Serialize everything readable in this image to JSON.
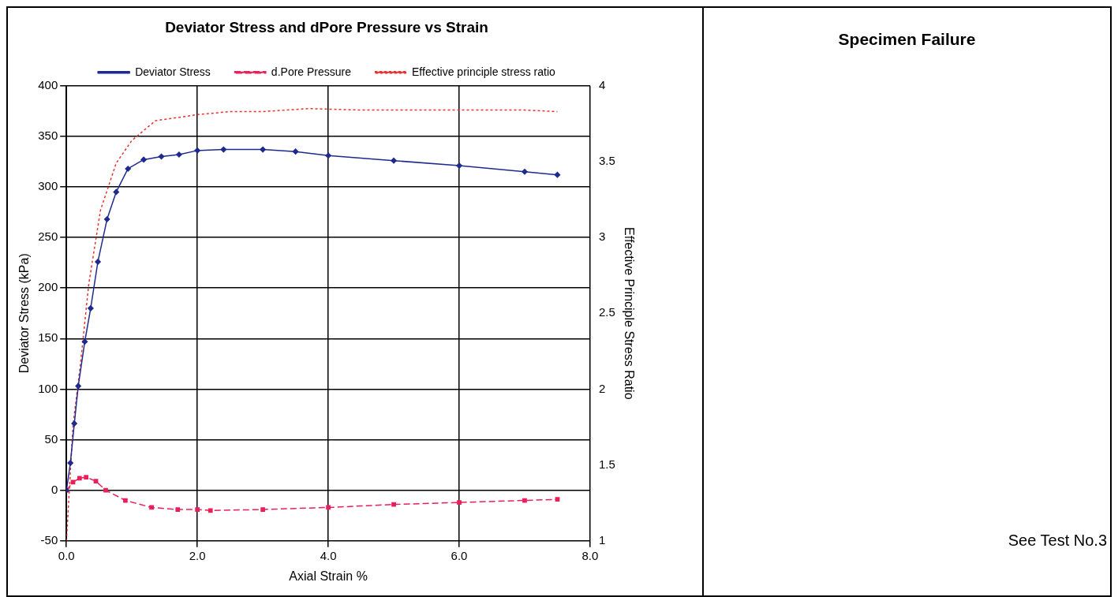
{
  "chart_data": [
    {
      "type": "line",
      "title": "Deviator Stress and dPore Pressure vs Strain",
      "xlabel": "Axial Strain %",
      "ylabel": "Deviator Stress (kPa)",
      "y2label": "Effective Principle Stress Ratio",
      "series": [
        {
          "name": "Deviator Stress",
          "color": "#1f2a8f",
          "marker": "diamond",
          "line_style": "solid",
          "x": [
            0,
            0.06,
            0.12,
            0.18,
            0.28,
            0.37,
            0.48,
            0.62,
            0.76,
            0.94,
            1.18,
            1.45,
            1.72,
            2.0,
            2.4,
            3.0,
            3.5,
            4.0,
            5.0,
            6.0,
            7.0,
            7.5
          ],
          "values": [
            0,
            27,
            66,
            103,
            147,
            180,
            226,
            268,
            295,
            318,
            327,
            330,
            332,
            336,
            337,
            337,
            335,
            331,
            326,
            321,
            315,
            312
          ]
        },
        {
          "name": "d.Pore Pressure",
          "color": "#e8205a",
          "marker": "square",
          "line_style": "dashed",
          "x": [
            0,
            0.1,
            0.2,
            0.3,
            0.45,
            0.6,
            0.9,
            1.3,
            1.7,
            2.0,
            2.2,
            3.0,
            4.0,
            5.0,
            6.0,
            7.0,
            7.5
          ],
          "values": [
            0,
            8,
            12,
            13,
            9,
            0,
            -10,
            -17,
            -19,
            -19,
            -20,
            -19,
            -17,
            -14,
            -12,
            -10,
            -9
          ]
        },
        {
          "name": "Effective principle stress ratio",
          "color": "#e83030",
          "marker": "none",
          "line_style": "dotted",
          "axis": "y2",
          "x": [
            0,
            0.1,
            0.22,
            0.34,
            0.52,
            0.76,
            1.0,
            1.36,
            1.85,
            2.0,
            2.5,
            3.0,
            3.7,
            4.5,
            5.0,
            6.0,
            7.0,
            7.5
          ],
          "values": [
            1,
            1.76,
            2.19,
            2.69,
            3.18,
            3.49,
            3.64,
            3.77,
            3.8,
            3.81,
            3.83,
            3.83,
            3.85,
            3.84,
            3.84,
            3.84,
            3.84,
            3.83
          ]
        }
      ],
      "xlim": [
        0,
        8
      ],
      "xticks": [
        {
          "value": 0,
          "label": "0.0"
        },
        {
          "value": 2,
          "label": "2.0"
        },
        {
          "value": 4,
          "label": "4.0"
        },
        {
          "value": 6,
          "label": "6.0"
        },
        {
          "value": 8,
          "label": "8.0"
        }
      ],
      "ylim": [
        -50,
        400
      ],
      "yticks": [
        -50,
        0,
        50,
        100,
        150,
        200,
        250,
        300,
        350,
        400
      ],
      "y2lim": [
        1,
        4
      ],
      "y2ticks": [
        1,
        1.5,
        2,
        2.5,
        3,
        3.5,
        4
      ],
      "grid": true,
      "legend": "top"
    },
    {
      "type": "other",
      "title": "Specimen Failure",
      "annotations": [
        "See Test No.3"
      ]
    }
  ]
}
